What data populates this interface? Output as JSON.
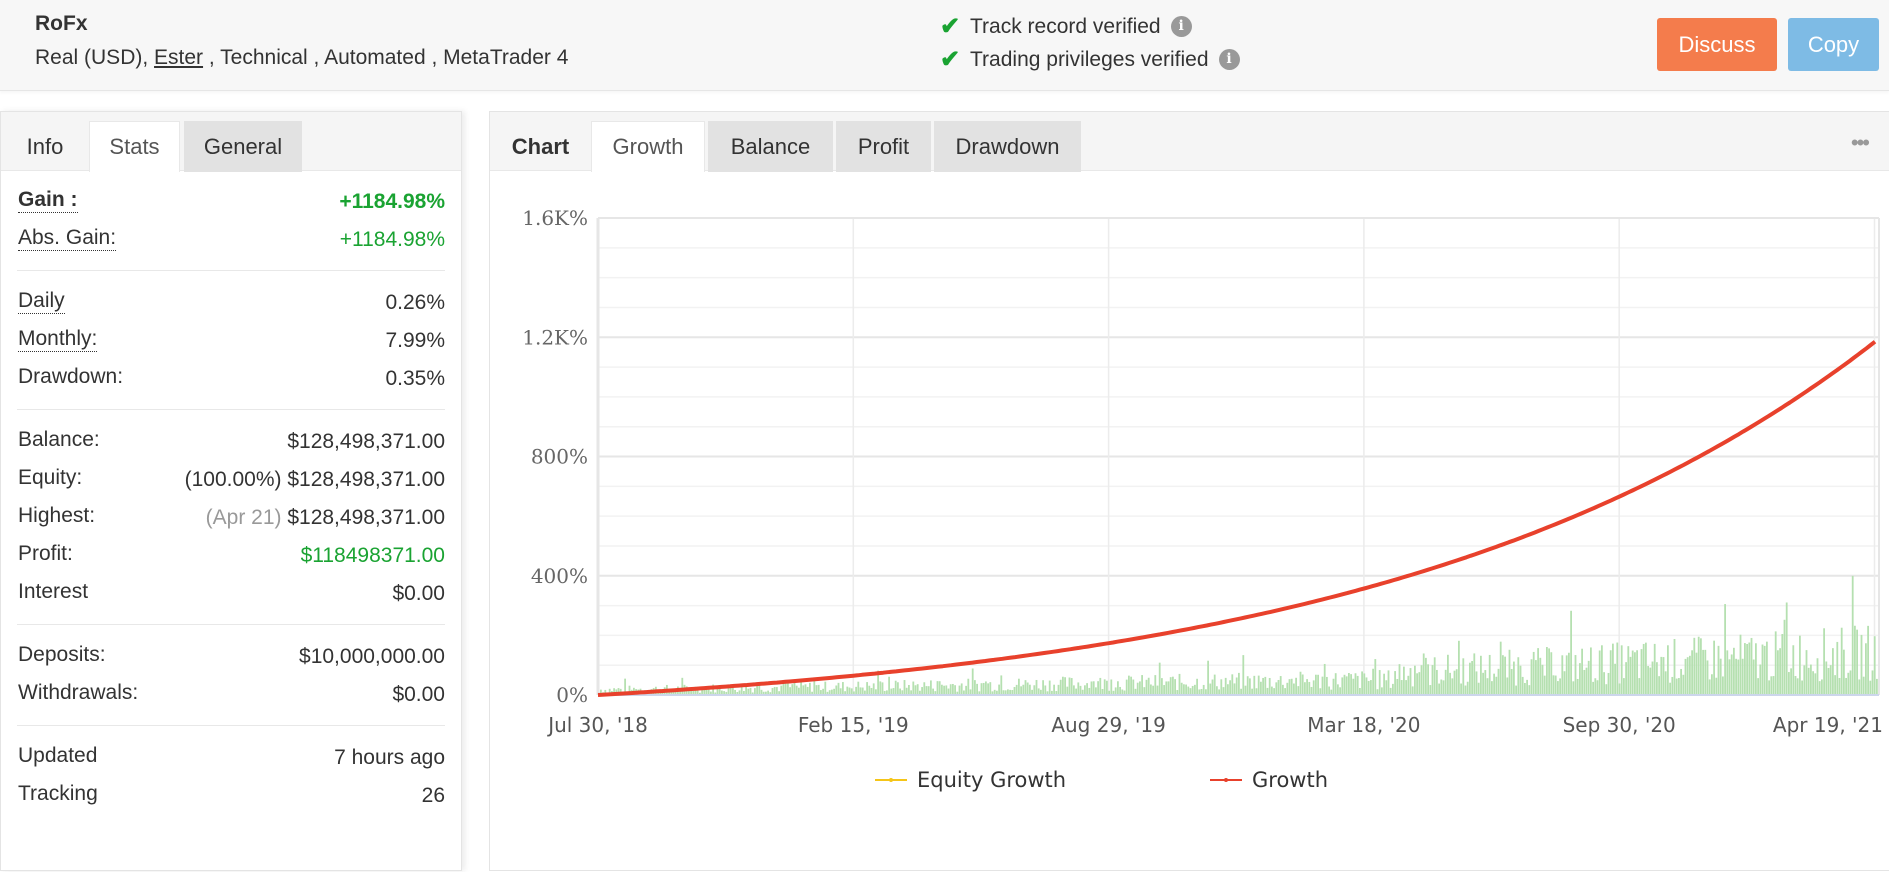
{
  "header": {
    "system_name": "RoFx",
    "subtitle_parts": [
      "Real (USD), ",
      "Ester",
      " , Technical , Automated , MetaTrader 4"
    ],
    "verifications": [
      {
        "label": "Track record verified",
        "icon": "check-icon"
      },
      {
        "label": "Trading privileges verified",
        "icon": "check-icon"
      }
    ],
    "info_glyph": "i",
    "buttons": {
      "discuss": "Discuss",
      "copy": "Copy"
    },
    "colors": {
      "discuss": "#f47c4c",
      "copy": "#7ebbe5",
      "check": "#1aa332"
    }
  },
  "left_panel": {
    "tabs": [
      "Info",
      "Stats",
      "General"
    ],
    "active_tab": "Stats",
    "stats": {
      "gain": {
        "label": "Gain :",
        "value": "+1184.98%"
      },
      "abs_gain": {
        "label": "Abs. Gain:",
        "value": "+1184.98%"
      },
      "daily": {
        "label": "Daily",
        "value": "0.26%"
      },
      "monthly": {
        "label": "Monthly:",
        "value": "7.99%"
      },
      "drawdown": {
        "label": "Drawdown:",
        "value": "0.35%"
      },
      "balance": {
        "label": "Balance:",
        "value": "$128,498,371.00"
      },
      "equity": {
        "label": "Equity:",
        "note": "(100.00%)",
        "value": "$128,498,371.00"
      },
      "highest": {
        "label": "Highest:",
        "note": "(Apr 21)",
        "value": "$128,498,371.00"
      },
      "profit": {
        "label": "Profit:",
        "value": "$118498371.00"
      },
      "interest": {
        "label": "Interest",
        "value": "$0.00"
      },
      "deposits": {
        "label": "Deposits:",
        "value": "$10,000,000.00"
      },
      "withdrawals": {
        "label": "Withdrawals:",
        "value": "$0.00"
      },
      "updated": {
        "label": "Updated",
        "value": "7 hours ago"
      },
      "tracking": {
        "label": "Tracking",
        "value": "26"
      }
    }
  },
  "chart_panel": {
    "tabs_label": "Chart",
    "tabs": [
      "Growth",
      "Balance",
      "Profit",
      "Drawdown"
    ],
    "active_tab": "Growth",
    "more_icon": "•••"
  },
  "chart_data": {
    "type": "line",
    "title": "",
    "xlabel": "",
    "ylabel": "",
    "x_tick_labels": [
      "Jul 30, '18",
      "Feb 15, '19",
      "Aug 29, '19",
      "Mar 18, '20",
      "Sep 30, '20",
      "Apr 19, '21"
    ],
    "y_tick_labels": [
      "0%",
      "400%",
      "800%",
      "1.2K%",
      "1.6K%"
    ],
    "ylim": [
      0,
      1600
    ],
    "grid": true,
    "legend": {
      "position": "bottom",
      "entries": [
        "Equity Growth",
        "Growth"
      ]
    },
    "series": [
      {
        "name": "Growth",
        "color": "#e8412c",
        "x": [
          "Jul 30, '18",
          "Feb 15, '19",
          "Aug 29, '19",
          "Mar 18, '20",
          "Sep 30, '20",
          "Apr 19, '21",
          "Apr 21, '21"
        ],
        "values": [
          0,
          70,
          180,
          370,
          680,
          1170,
          1185
        ]
      },
      {
        "name": "Equity Growth",
        "color": "#f5c518",
        "x": [
          "Jul 30, '18",
          "Apr 21, '21"
        ],
        "values": [
          0,
          1185
        ]
      },
      {
        "name": "Daily change (bars)",
        "color": "#b5e0b0",
        "type": "bar",
        "note": "small green histogram along baseline; heights roughly 0-100% scale, larger after Mar '20, max spike ~Dec '20"
      }
    ]
  }
}
